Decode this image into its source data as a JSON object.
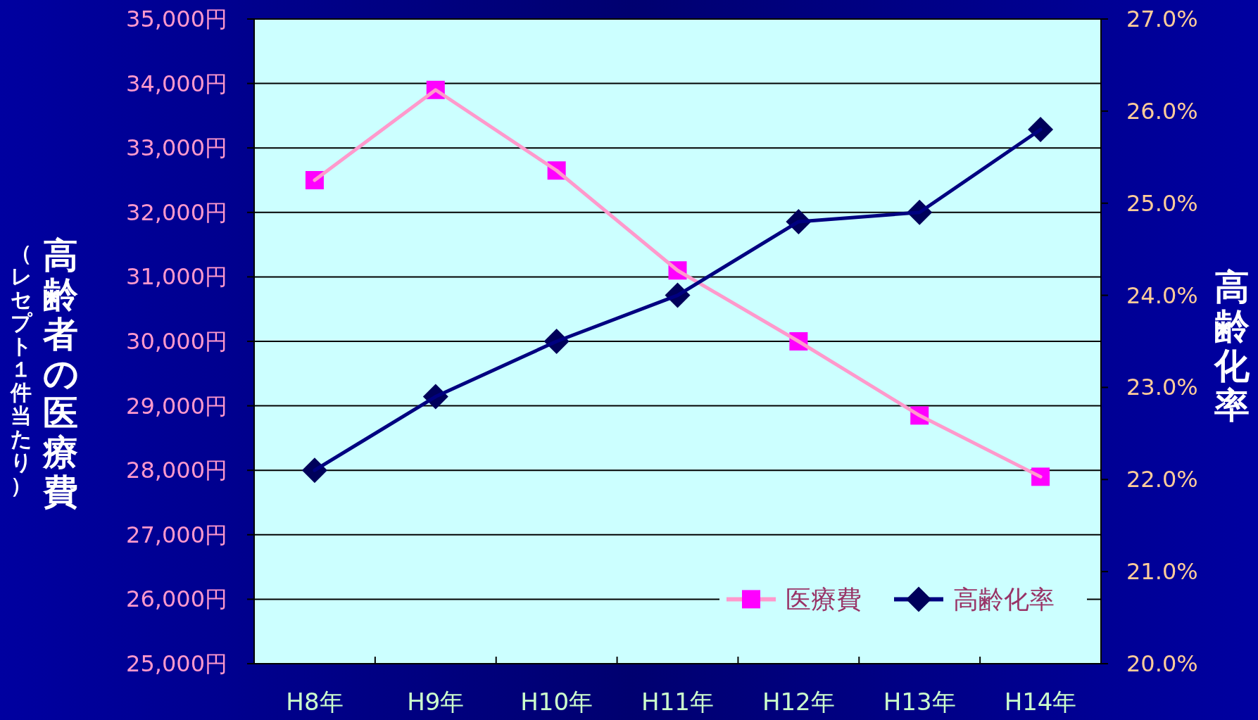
{
  "chart_data": {
    "type": "line",
    "ylabel": "高齢者の医療費",
    "y2label": "高齢化率",
    "annotations": [
      "（レセプト１件当たり）"
    ],
    "categories": [
      "H8年",
      "H9年",
      "H10年",
      "H11年",
      "H12年",
      "H13年",
      "H14年"
    ],
    "series": [
      {
        "name": "医療費",
        "color": "#ff99cc",
        "colors": [
          "#ff00ff",
          "#ff00ff",
          "#ff00ff",
          "#ff00ff",
          "#ff00ff",
          "#ff00ff",
          "#ff00ff"
        ],
        "marker": "square",
        "values": [
          32500,
          33900,
          32650,
          31100,
          30000,
          28850,
          27900
        ]
      },
      {
        "name": "高齢化率",
        "color": "#000080",
        "colors": [
          "#00005a",
          "#00005a",
          "#00005a",
          "#00005a",
          "#00005a",
          "#00005a",
          "#00005a"
        ],
        "marker": "diamond",
        "axis": "y2",
        "values": [
          22.1,
          22.9,
          23.5,
          24.0,
          24.8,
          24.9,
          25.8
        ]
      }
    ],
    "ylim": [
      25000,
      35000
    ],
    "yticks": [
      {
        "value": 25000,
        "label": "25,000円"
      },
      {
        "value": 26000,
        "label": "26,000円"
      },
      {
        "value": 27000,
        "label": "27,000円"
      },
      {
        "value": 28000,
        "label": "28,000円"
      },
      {
        "value": 29000,
        "label": "29,000円"
      },
      {
        "value": 30000,
        "label": "30,000円"
      },
      {
        "value": 31000,
        "label": "31,000円"
      },
      {
        "value": 32000,
        "label": "32,000円"
      },
      {
        "value": 33000,
        "label": "33,000円"
      },
      {
        "value": 34000,
        "label": "34,000円"
      },
      {
        "value": 35000,
        "label": "35,000円"
      }
    ],
    "y2lim": [
      20,
      27
    ],
    "y2ticks": [
      {
        "value": 20,
        "label": "20.0%"
      },
      {
        "value": 21,
        "label": "21.0%"
      },
      {
        "value": 22,
        "label": "22.0%"
      },
      {
        "value": 23,
        "label": "23.0%"
      },
      {
        "value": 24,
        "label": "24.0%"
      },
      {
        "value": 25,
        "label": "25.0%"
      },
      {
        "value": 26,
        "label": "26.0%"
      },
      {
        "value": 27,
        "label": "27.0%"
      }
    ],
    "grid": "y",
    "legend": "bottom right",
    "line_style": "solid"
  }
}
